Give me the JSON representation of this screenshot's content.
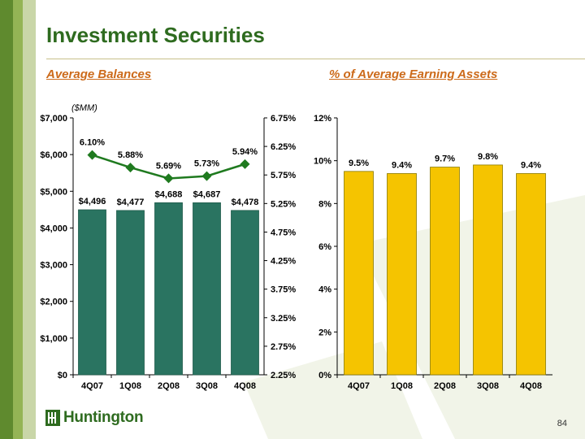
{
  "header": {
    "title": "Investment Securities"
  },
  "left_chart": {
    "subtitle": "Average Balances",
    "unit_note": "($MM)"
  },
  "right_chart": {
    "subtitle": "% of Average Earning Assets"
  },
  "footer": {
    "logo_text": "Huntington",
    "page_number": "84"
  },
  "colors": {
    "green_bar": "#2a7461",
    "yellow_bar": "#f5c400",
    "line": "#1f7a1f",
    "title": "#2e6b1f",
    "subtitle": "#cc6a1a"
  },
  "chart_data": [
    {
      "type": "bar",
      "categories": [
        "4Q07",
        "1Q08",
        "2Q08",
        "3Q08",
        "4Q08"
      ],
      "series": [
        {
          "name": "Average Balances",
          "values": [
            4496,
            4477,
            4688,
            4687,
            4478
          ],
          "labels": [
            "$4,496",
            "$4,477",
            "$4,688",
            "$4,687",
            "$4,478"
          ],
          "axis": "left"
        },
        {
          "type": "line",
          "values": [
            6.1,
            5.88,
            5.69,
            5.73,
            5.94
          ],
          "labels": [
            "6.10%",
            "5.88%",
            "5.69%",
            "5.73%",
            "5.94%"
          ],
          "axis": "right"
        }
      ],
      "ylim": [
        0,
        7000
      ],
      "yticks": [
        "$0",
        "$1,000",
        "$2,000",
        "$3,000",
        "$4,000",
        "$5,000",
        "$6,000",
        "$7,000"
      ],
      "y2lim": [
        2.25,
        6.75
      ],
      "y2ticks": [
        "2.25%",
        "2.75%",
        "3.25%",
        "3.75%",
        "4.25%",
        "4.75%",
        "5.25%",
        "5.75%",
        "6.25%",
        "6.75%"
      ],
      "grid": false
    },
    {
      "type": "bar",
      "categories": [
        "4Q07",
        "1Q08",
        "2Q08",
        "3Q08",
        "4Q08"
      ],
      "series": [
        {
          "values": [
            9.5,
            9.4,
            9.7,
            9.8,
            9.4
          ],
          "labels": [
            "9.5%",
            "9.4%",
            "9.7%",
            "9.8%",
            "9.4%"
          ]
        }
      ],
      "ylim": [
        0,
        12
      ],
      "yticks": [
        "0%",
        "2%",
        "4%",
        "6%",
        "8%",
        "10%",
        "12%"
      ],
      "grid": false
    }
  ]
}
